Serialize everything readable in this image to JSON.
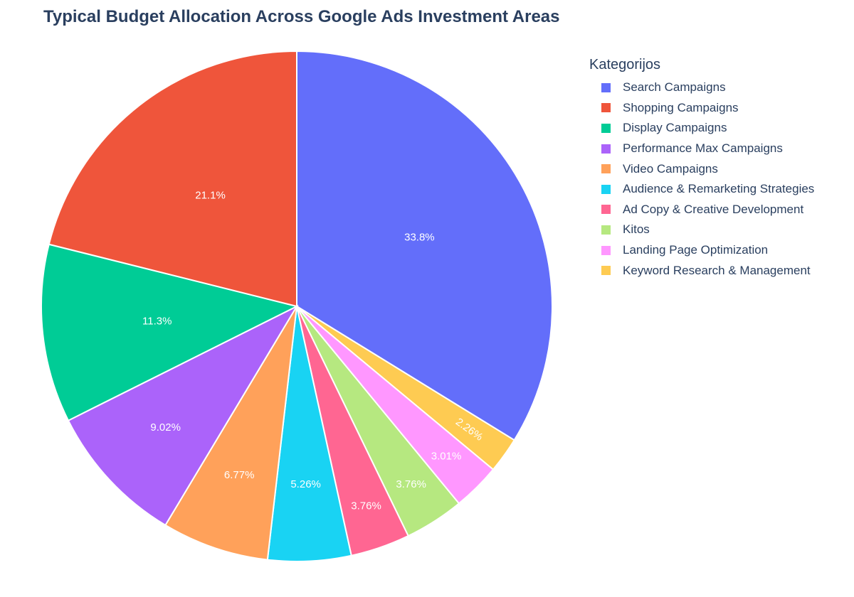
{
  "chart_data": {
    "type": "pie",
    "title": "Typical Budget Allocation Across Google Ads Investment Areas",
    "legend_title": "Kategorijos",
    "legend_position": "right",
    "slices": [
      {
        "label": "Search Campaigns",
        "value": 33.8,
        "display": "33.8%",
        "color": "#636efa"
      },
      {
        "label": "Shopping Campaigns",
        "value": 21.1,
        "display": "21.1%",
        "color": "#ef553b"
      },
      {
        "label": "Display Campaigns",
        "value": 11.3,
        "display": "11.3%",
        "color": "#00cc96"
      },
      {
        "label": "Performance Max Campaigns",
        "value": 9.02,
        "display": "9.02%",
        "color": "#ab63fa"
      },
      {
        "label": "Video Campaigns",
        "value": 6.77,
        "display": "6.77%",
        "color": "#ffa15a"
      },
      {
        "label": "Audience & Remarketing Strategies",
        "value": 5.26,
        "display": "5.26%",
        "color": "#19d3f3"
      },
      {
        "label": "Ad Copy & Creative Development",
        "value": 3.76,
        "display": "3.76%",
        "color": "#ff6692"
      },
      {
        "label": "Kitos",
        "value": 3.76,
        "display": "3.76%",
        "color": "#b6e880"
      },
      {
        "label": "Landing Page Optimization",
        "value": 3.01,
        "display": "3.01%",
        "color": "#ff97ff"
      },
      {
        "label": "Keyword Research & Management",
        "value": 2.26,
        "display": "2.26%",
        "color": "#fecb52"
      }
    ],
    "draw_order": [
      0,
      9,
      8,
      7,
      6,
      5,
      4,
      3,
      2,
      1
    ]
  }
}
